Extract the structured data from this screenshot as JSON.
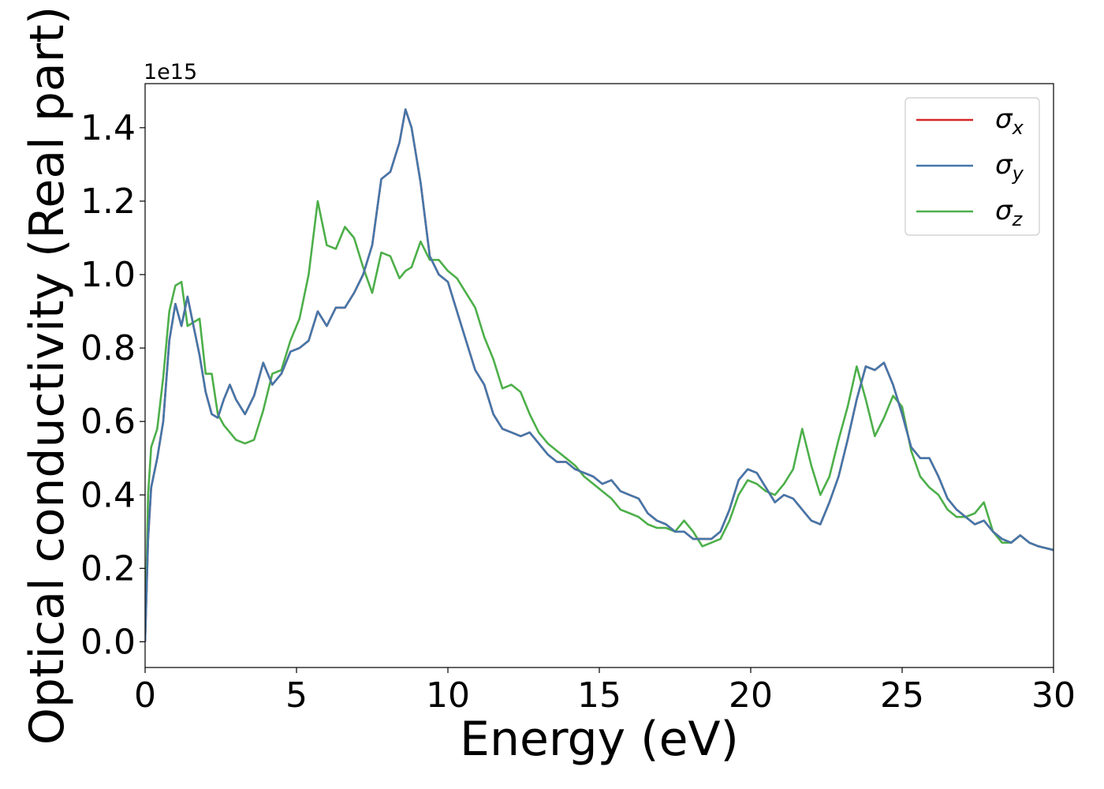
{
  "chart_data": {
    "type": "line",
    "xlabel": "Energy (eV)",
    "ylabel": "Optical conductivity (Real part)",
    "y_offset_text": "1e15",
    "xlim": [
      0,
      30
    ],
    "ylim": [
      -0.07,
      1.52
    ],
    "x_ticks": [
      0,
      5,
      10,
      15,
      20,
      25,
      30
    ],
    "x_tick_labels": [
      "0",
      "5",
      "10",
      "15",
      "20",
      "25",
      "30"
    ],
    "y_ticks": [
      0.0,
      0.2,
      0.4,
      0.6,
      0.8,
      1.0,
      1.2,
      1.4
    ],
    "y_tick_labels": [
      "0.0",
      "0.2",
      "0.4",
      "0.6",
      "0.8",
      "1.0",
      "1.2",
      "1.4"
    ],
    "grid": false,
    "legend_position": "top-right",
    "series": [
      {
        "name": "σ",
        "subscript": "x",
        "color": "#d62728",
        "x": [
          0,
          0.1,
          0.2,
          0.4,
          0.6,
          0.8,
          1.0,
          1.2,
          1.4,
          1.6,
          1.8,
          2.0,
          2.2,
          2.4,
          2.6,
          2.8,
          3.0,
          3.3,
          3.6,
          3.9,
          4.2,
          4.5,
          4.8,
          5.1,
          5.4,
          5.7,
          6.0,
          6.3,
          6.6,
          6.9,
          7.2,
          7.5,
          7.8,
          8.1,
          8.4,
          8.6,
          8.8,
          9.1,
          9.4,
          9.7,
          10.0,
          10.3,
          10.6,
          10.9,
          11.2,
          11.5,
          11.8,
          12.1,
          12.4,
          12.7,
          13.0,
          13.3,
          13.6,
          13.9,
          14.2,
          14.5,
          14.8,
          15.1,
          15.4,
          15.7,
          16.0,
          16.3,
          16.6,
          16.9,
          17.2,
          17.5,
          17.8,
          18.1,
          18.4,
          18.7,
          19.0,
          19.3,
          19.6,
          19.9,
          20.2,
          20.5,
          20.8,
          21.1,
          21.4,
          21.7,
          22.0,
          22.3,
          22.6,
          22.9,
          23.2,
          23.5,
          23.8,
          24.1,
          24.4,
          24.7,
          25.0,
          25.3,
          25.6,
          25.9,
          26.2,
          26.5,
          26.8,
          27.1,
          27.4,
          27.7,
          28.0,
          28.3,
          28.6,
          28.9,
          29.2,
          29.5,
          30.0
        ],
        "y": [
          0.0,
          0.28,
          0.42,
          0.5,
          0.6,
          0.82,
          0.92,
          0.86,
          0.94,
          0.86,
          0.78,
          0.68,
          0.62,
          0.61,
          0.66,
          0.7,
          0.66,
          0.62,
          0.67,
          0.76,
          0.7,
          0.73,
          0.79,
          0.8,
          0.82,
          0.9,
          0.86,
          0.91,
          0.91,
          0.95,
          1.0,
          1.08,
          1.26,
          1.28,
          1.36,
          1.45,
          1.4,
          1.25,
          1.05,
          1.0,
          0.98,
          0.9,
          0.82,
          0.74,
          0.7,
          0.62,
          0.58,
          0.57,
          0.56,
          0.57,
          0.54,
          0.51,
          0.49,
          0.49,
          0.47,
          0.46,
          0.45,
          0.43,
          0.44,
          0.41,
          0.4,
          0.39,
          0.35,
          0.33,
          0.32,
          0.3,
          0.3,
          0.28,
          0.28,
          0.28,
          0.3,
          0.36,
          0.44,
          0.47,
          0.46,
          0.42,
          0.38,
          0.4,
          0.39,
          0.36,
          0.33,
          0.32,
          0.38,
          0.45,
          0.55,
          0.66,
          0.75,
          0.74,
          0.76,
          0.7,
          0.62,
          0.53,
          0.5,
          0.5,
          0.45,
          0.39,
          0.36,
          0.34,
          0.32,
          0.33,
          0.3,
          0.28,
          0.27,
          0.29,
          0.27,
          0.26,
          0.25
        ]
      },
      {
        "name": "σ",
        "subscript": "y",
        "color": "#4477aa",
        "x": [
          0,
          0.1,
          0.2,
          0.4,
          0.6,
          0.8,
          1.0,
          1.2,
          1.4,
          1.6,
          1.8,
          2.0,
          2.2,
          2.4,
          2.6,
          2.8,
          3.0,
          3.3,
          3.6,
          3.9,
          4.2,
          4.5,
          4.8,
          5.1,
          5.4,
          5.7,
          6.0,
          6.3,
          6.6,
          6.9,
          7.2,
          7.5,
          7.8,
          8.1,
          8.4,
          8.6,
          8.8,
          9.1,
          9.4,
          9.7,
          10.0,
          10.3,
          10.6,
          10.9,
          11.2,
          11.5,
          11.8,
          12.1,
          12.4,
          12.7,
          13.0,
          13.3,
          13.6,
          13.9,
          14.2,
          14.5,
          14.8,
          15.1,
          15.4,
          15.7,
          16.0,
          16.3,
          16.6,
          16.9,
          17.2,
          17.5,
          17.8,
          18.1,
          18.4,
          18.7,
          19.0,
          19.3,
          19.6,
          19.9,
          20.2,
          20.5,
          20.8,
          21.1,
          21.4,
          21.7,
          22.0,
          22.3,
          22.6,
          22.9,
          23.2,
          23.5,
          23.8,
          24.1,
          24.4,
          24.7,
          25.0,
          25.3,
          25.6,
          25.9,
          26.2,
          26.5,
          26.8,
          27.1,
          27.4,
          27.7,
          28.0,
          28.3,
          28.6,
          28.9,
          29.2,
          29.5,
          30.0
        ],
        "y": [
          0.0,
          0.28,
          0.42,
          0.5,
          0.6,
          0.82,
          0.92,
          0.86,
          0.94,
          0.86,
          0.78,
          0.68,
          0.62,
          0.61,
          0.66,
          0.7,
          0.66,
          0.62,
          0.67,
          0.76,
          0.7,
          0.73,
          0.79,
          0.8,
          0.82,
          0.9,
          0.86,
          0.91,
          0.91,
          0.95,
          1.0,
          1.08,
          1.26,
          1.28,
          1.36,
          1.45,
          1.4,
          1.25,
          1.05,
          1.0,
          0.98,
          0.9,
          0.82,
          0.74,
          0.7,
          0.62,
          0.58,
          0.57,
          0.56,
          0.57,
          0.54,
          0.51,
          0.49,
          0.49,
          0.47,
          0.46,
          0.45,
          0.43,
          0.44,
          0.41,
          0.4,
          0.39,
          0.35,
          0.33,
          0.32,
          0.3,
          0.3,
          0.28,
          0.28,
          0.28,
          0.3,
          0.36,
          0.44,
          0.47,
          0.46,
          0.42,
          0.38,
          0.4,
          0.39,
          0.36,
          0.33,
          0.32,
          0.38,
          0.45,
          0.55,
          0.66,
          0.75,
          0.74,
          0.76,
          0.7,
          0.62,
          0.53,
          0.5,
          0.5,
          0.45,
          0.39,
          0.36,
          0.34,
          0.32,
          0.33,
          0.3,
          0.28,
          0.27,
          0.29,
          0.27,
          0.26,
          0.25
        ]
      },
      {
        "name": "σ",
        "subscript": "z",
        "color": "#4daf4a",
        "x": [
          0,
          0.1,
          0.2,
          0.4,
          0.6,
          0.8,
          1.0,
          1.2,
          1.4,
          1.6,
          1.8,
          2.0,
          2.2,
          2.4,
          2.6,
          2.8,
          3.0,
          3.3,
          3.6,
          3.9,
          4.2,
          4.5,
          4.8,
          5.1,
          5.4,
          5.7,
          6.0,
          6.3,
          6.6,
          6.9,
          7.2,
          7.5,
          7.8,
          8.1,
          8.4,
          8.6,
          8.8,
          9.1,
          9.4,
          9.7,
          10.0,
          10.3,
          10.6,
          10.9,
          11.2,
          11.5,
          11.8,
          12.1,
          12.4,
          12.7,
          13.0,
          13.3,
          13.6,
          13.9,
          14.2,
          14.5,
          14.8,
          15.1,
          15.4,
          15.7,
          16.0,
          16.3,
          16.6,
          16.9,
          17.2,
          17.5,
          17.8,
          18.1,
          18.4,
          18.7,
          19.0,
          19.3,
          19.6,
          19.9,
          20.2,
          20.5,
          20.8,
          21.1,
          21.4,
          21.7,
          22.0,
          22.3,
          22.6,
          22.9,
          23.2,
          23.5,
          23.8,
          24.1,
          24.4,
          24.7,
          25.0,
          25.3,
          25.6,
          25.9,
          26.2,
          26.5,
          26.8,
          27.1,
          27.4,
          27.7,
          28.0,
          28.3,
          28.6,
          28.9,
          29.2,
          29.5,
          30.0
        ],
        "y": [
          0.0,
          0.4,
          0.53,
          0.58,
          0.72,
          0.9,
          0.97,
          0.98,
          0.86,
          0.87,
          0.88,
          0.73,
          0.73,
          0.62,
          0.59,
          0.57,
          0.55,
          0.54,
          0.55,
          0.63,
          0.73,
          0.74,
          0.82,
          0.88,
          1.0,
          1.2,
          1.08,
          1.07,
          1.13,
          1.1,
          1.02,
          0.95,
          1.06,
          1.05,
          0.99,
          1.01,
          1.02,
          1.09,
          1.04,
          1.04,
          1.01,
          0.99,
          0.95,
          0.91,
          0.83,
          0.77,
          0.69,
          0.7,
          0.68,
          0.62,
          0.57,
          0.54,
          0.52,
          0.5,
          0.48,
          0.45,
          0.43,
          0.41,
          0.39,
          0.36,
          0.35,
          0.34,
          0.32,
          0.31,
          0.31,
          0.3,
          0.33,
          0.3,
          0.26,
          0.27,
          0.28,
          0.33,
          0.4,
          0.44,
          0.43,
          0.41,
          0.4,
          0.43,
          0.47,
          0.58,
          0.48,
          0.4,
          0.45,
          0.55,
          0.64,
          0.75,
          0.66,
          0.56,
          0.61,
          0.67,
          0.64,
          0.52,
          0.45,
          0.42,
          0.4,
          0.36,
          0.34,
          0.34,
          0.35,
          0.38,
          0.3,
          0.27,
          0.27,
          0.29,
          0.27,
          0.26,
          0.25
        ]
      }
    ]
  }
}
